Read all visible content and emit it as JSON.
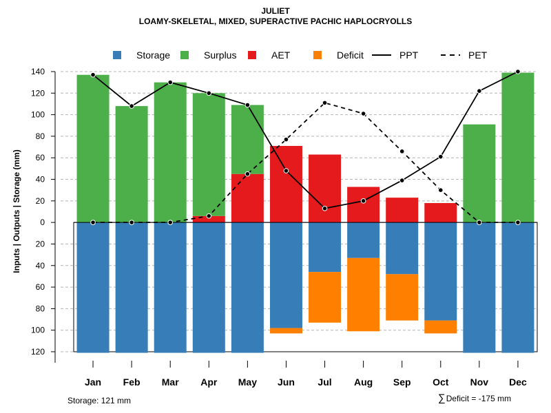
{
  "title": "JULIET",
  "subtitle": "LOAMY-SKELETAL, MIXED, SUPERACTIVE PACHIC HAPLOCRYOLLS",
  "footer": {
    "storage_text": "Storage: 121 mm",
    "deficit_symbol": "∑",
    "deficit_text": "Deficit = -175 mm"
  },
  "colors": {
    "storage": "#377EB8",
    "surplus": "#4DAF4A",
    "aet": "#E41A1C",
    "deficit": "#FF7F00",
    "grid": "#b4b4b4",
    "line": "#000000"
  },
  "chart_data": {
    "type": "bar",
    "ylabel": "Inputs | Outputs | Storage    (mm)",
    "ylim": [
      -120,
      140
    ],
    "y_ticks": [
      140,
      120,
      100,
      80,
      60,
      40,
      20,
      0,
      -20,
      -40,
      -60,
      -80,
      -100,
      -120
    ],
    "y_tick_labels": [
      "140",
      "120",
      "100",
      "80",
      "60",
      "40",
      "20",
      "0",
      "20",
      "40",
      "60",
      "80",
      "100",
      "120"
    ],
    "grid": true,
    "legend_position": "top",
    "legend": [
      {
        "key": "storage",
        "label": "Storage",
        "kind": "box"
      },
      {
        "key": "surplus",
        "label": "Surplus",
        "kind": "box"
      },
      {
        "key": "aet",
        "label": "AET",
        "kind": "box"
      },
      {
        "key": "deficit",
        "label": "Deficit",
        "kind": "box"
      },
      {
        "key": "ppt",
        "label": "PPT",
        "kind": "solid"
      },
      {
        "key": "pet",
        "label": "PET",
        "kind": "dashed"
      }
    ],
    "categories": [
      "Jan",
      "Feb",
      "Mar",
      "Apr",
      "May",
      "Jun",
      "Jul",
      "Aug",
      "Sep",
      "Oct",
      "Nov",
      "Dec"
    ],
    "series": {
      "aet": [
        0,
        0,
        0,
        6,
        45,
        71,
        63,
        33,
        23,
        18,
        0,
        0
      ],
      "surplus": [
        137,
        108,
        130,
        114,
        64,
        0,
        0,
        0,
        0,
        0,
        91,
        139
      ],
      "storage": [
        121,
        121,
        121,
        121,
        121,
        98,
        46,
        33,
        48,
        91,
        121,
        121
      ],
      "deficit": [
        0,
        0,
        0,
        0,
        0,
        5,
        47,
        68,
        43,
        12,
        0,
        0
      ],
      "ppt": [
        137,
        108,
        130,
        120,
        109,
        48,
        13,
        20,
        39,
        61,
        122,
        140
      ],
      "pet": [
        0,
        0,
        0,
        6,
        45,
        77,
        111,
        101,
        66,
        30,
        0,
        0
      ]
    }
  }
}
